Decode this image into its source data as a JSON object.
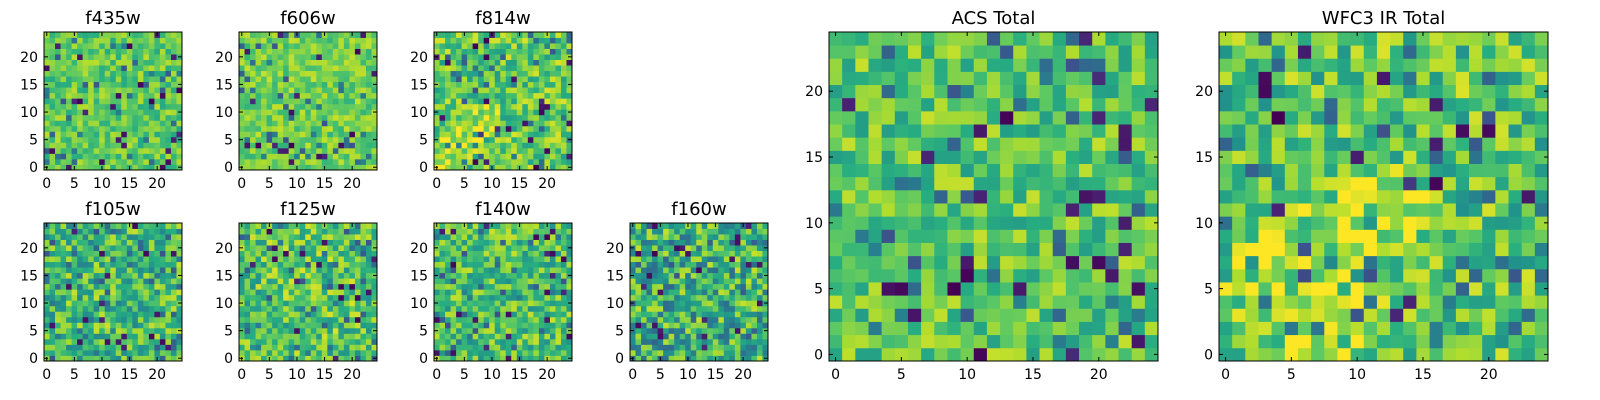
{
  "chart_data": [
    {
      "type": "heatmap",
      "title": "f435w",
      "x_ticks": [
        "0",
        "5",
        "10",
        "15",
        "20"
      ],
      "y_ticks": [
        "0",
        "5",
        "10",
        "15",
        "20"
      ],
      "grid": false,
      "colormap": "viridis",
      "shape": [
        25,
        25
      ],
      "dominant_value_range": [
        0.6,
        0.9
      ]
    },
    {
      "type": "heatmap",
      "title": "f606w",
      "x_ticks": [
        "0",
        "5",
        "10",
        "15",
        "20"
      ],
      "y_ticks": [
        "0",
        "5",
        "10",
        "15",
        "20"
      ],
      "grid": false,
      "colormap": "viridis",
      "shape": [
        25,
        25
      ],
      "dominant_value_range": [
        0.65,
        0.92
      ]
    },
    {
      "type": "heatmap",
      "title": "f814w",
      "x_ticks": [
        "0",
        "5",
        "10",
        "15",
        "20"
      ],
      "y_ticks": [
        "0",
        "5",
        "10",
        "15",
        "20"
      ],
      "grid": false,
      "colormap": "viridis",
      "shape": [
        25,
        25
      ],
      "dominant_value_range": [
        0.55,
        0.95
      ],
      "feature": "bright diagonal band toward lower-left"
    },
    {
      "type": "heatmap",
      "title": "f105w",
      "x_ticks": [
        "0",
        "5",
        "10",
        "15",
        "20"
      ],
      "y_ticks": [
        "0",
        "5",
        "10",
        "15",
        "20"
      ],
      "grid": false,
      "colormap": "viridis",
      "shape": [
        25,
        25
      ],
      "dominant_value_range": [
        0.45,
        0.92
      ]
    },
    {
      "type": "heatmap",
      "title": "f125w",
      "x_ticks": [
        "0",
        "5",
        "10",
        "15",
        "20"
      ],
      "y_ticks": [
        "0",
        "5",
        "10",
        "15",
        "20"
      ],
      "grid": false,
      "colormap": "viridis",
      "shape": [
        25,
        25
      ],
      "dominant_value_range": [
        0.5,
        0.95
      ]
    },
    {
      "type": "heatmap",
      "title": "f140w",
      "x_ticks": [
        "0",
        "5",
        "10",
        "15",
        "20"
      ],
      "y_ticks": [
        "0",
        "5",
        "10",
        "15",
        "20"
      ],
      "grid": false,
      "colormap": "viridis",
      "shape": [
        25,
        25
      ],
      "dominant_value_range": [
        0.5,
        0.92
      ]
    },
    {
      "type": "heatmap",
      "title": "f160w",
      "x_ticks": [
        "0",
        "5",
        "10",
        "15",
        "20"
      ],
      "y_ticks": [
        "0",
        "5",
        "10",
        "15",
        "20"
      ],
      "grid": false,
      "colormap": "viridis",
      "shape": [
        25,
        25
      ],
      "dominant_value_range": [
        0.35,
        0.92
      ]
    },
    {
      "type": "heatmap",
      "title": "ACS Total",
      "x_ticks": [
        "0",
        "5",
        "10",
        "15",
        "20"
      ],
      "y_ticks": [
        "0",
        "5",
        "10",
        "15",
        "20"
      ],
      "grid": false,
      "colormap": "viridis",
      "shape": [
        25,
        25
      ],
      "dominant_value_range": [
        0.55,
        0.92
      ]
    },
    {
      "type": "heatmap",
      "title": "WFC3 IR Total",
      "x_ticks": [
        "0",
        "5",
        "10",
        "15",
        "20"
      ],
      "y_ticks": [
        "0",
        "5",
        "10",
        "15",
        "20"
      ],
      "grid": false,
      "colormap": "viridis",
      "shape": [
        25,
        25
      ],
      "dominant_value_range": [
        0.5,
        0.95
      ],
      "feature": "bright region toward lower-left and center"
    }
  ]
}
